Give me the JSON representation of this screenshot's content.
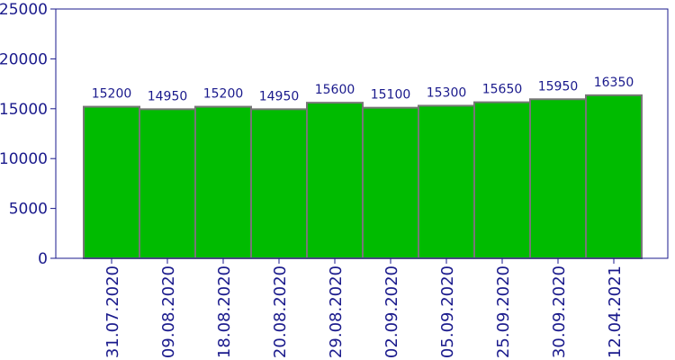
{
  "chart_data": {
    "type": "bar",
    "categories": [
      "31.07.2020",
      "09.08.2020",
      "18.08.2020",
      "20.08.2020",
      "29.08.2020",
      "02.09.2020",
      "05.09.2020",
      "25.09.2020",
      "30.09.2020",
      "12.04.2021"
    ],
    "values": [
      15200,
      14950,
      15200,
      14950,
      15600,
      15100,
      15300,
      15650,
      15950,
      16350
    ],
    "title": "",
    "xlabel": "",
    "ylabel": "",
    "ylim": [
      0,
      25000
    ],
    "yticks": [
      0,
      5000,
      10000,
      15000,
      20000,
      25000
    ],
    "grid": false,
    "legend": "none",
    "colors": {
      "bar_fill": "#00bb00",
      "bar_stroke": "#777777",
      "axis": "#1a1a8c",
      "text": "#1a1a8c"
    }
  }
}
